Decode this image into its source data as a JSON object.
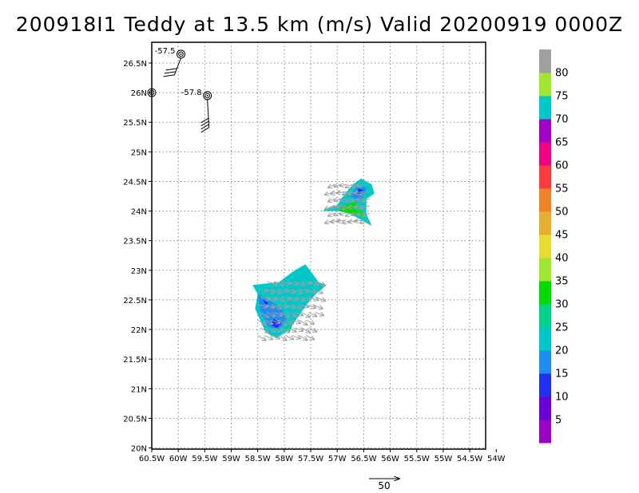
{
  "title": "200918I1 Teddy at 13.5 km (m/s) Valid 20200919 0000Z",
  "map": {
    "lon_ticks": [
      {
        "lon": -60.5,
        "label": "60.5W"
      },
      {
        "lon": -60,
        "label": "60W"
      },
      {
        "lon": -59.5,
        "label": "59.5W"
      },
      {
        "lon": -59,
        "label": "59W"
      },
      {
        "lon": -58.5,
        "label": "58.5W"
      },
      {
        "lon": -58,
        "label": "58W"
      },
      {
        "lon": -57.5,
        "label": "57.5W"
      },
      {
        "lon": -57,
        "label": "57W"
      },
      {
        "lon": -56.5,
        "label": "56.5W"
      },
      {
        "lon": -56,
        "label": "56W"
      },
      {
        "lon": -55.5,
        "label": "55.5W"
      },
      {
        "lon": -55,
        "label": "55W"
      },
      {
        "lon": -54.5,
        "label": "54.5W"
      },
      {
        "lon": -54,
        "label": "54W"
      }
    ],
    "lat_ticks": [
      {
        "lat": 20,
        "label": "20N"
      },
      {
        "lat": 20.5,
        "label": "20.5N"
      },
      {
        "lat": 21,
        "label": "21N"
      },
      {
        "lat": 21.5,
        "label": "21.5N"
      },
      {
        "lat": 22,
        "label": "22N"
      },
      {
        "lat": 22.5,
        "label": "22.5N"
      },
      {
        "lat": 23,
        "label": "23N"
      },
      {
        "lat": 23.5,
        "label": "23.5N"
      },
      {
        "lat": 24,
        "label": "24N"
      },
      {
        "lat": 24.5,
        "label": "24.5N"
      },
      {
        "lat": 25,
        "label": "25N"
      },
      {
        "lat": 25.5,
        "label": "25.5N"
      },
      {
        "lat": 26,
        "label": "26N"
      },
      {
        "lat": 26.5,
        "label": "26.5N"
      }
    ],
    "lon_range": [
      -60.5,
      -54.2
    ],
    "lat_range": [
      19.98,
      26.85
    ],
    "grid": "dotted",
    "stations": [
      {
        "lon": -59.95,
        "lat": 26.65,
        "label": "-57.5"
      },
      {
        "lon": -60.5,
        "lat": 26.0,
        "label": ""
      },
      {
        "lon": -59.45,
        "lat": 25.95,
        "label": "-57.8"
      }
    ],
    "reference_vector_label": "50"
  },
  "colorbar": {
    "labels": [
      "5",
      "10",
      "15",
      "20",
      "25",
      "30",
      "35",
      "40",
      "45",
      "50",
      "55",
      "60",
      "65",
      "70",
      "75",
      "80"
    ],
    "colors": [
      "#9d00c8",
      "#6a00d8",
      "#2030f0",
      "#1e8cf0",
      "#00c8c8",
      "#00d28c",
      "#00dc00",
      "#a0e632",
      "#e6dc32",
      "#e6af2d",
      "#f08228",
      "#fa3c3c",
      "#f00082",
      "#a000c8",
      "#00c8c8",
      "#a0e632",
      "#a0a0a0"
    ],
    "colors_meaning": "bottom-to-top color bands; 17 bands"
  },
  "colors": {
    "vector": "#a0a0a0",
    "text": "#000000"
  }
}
